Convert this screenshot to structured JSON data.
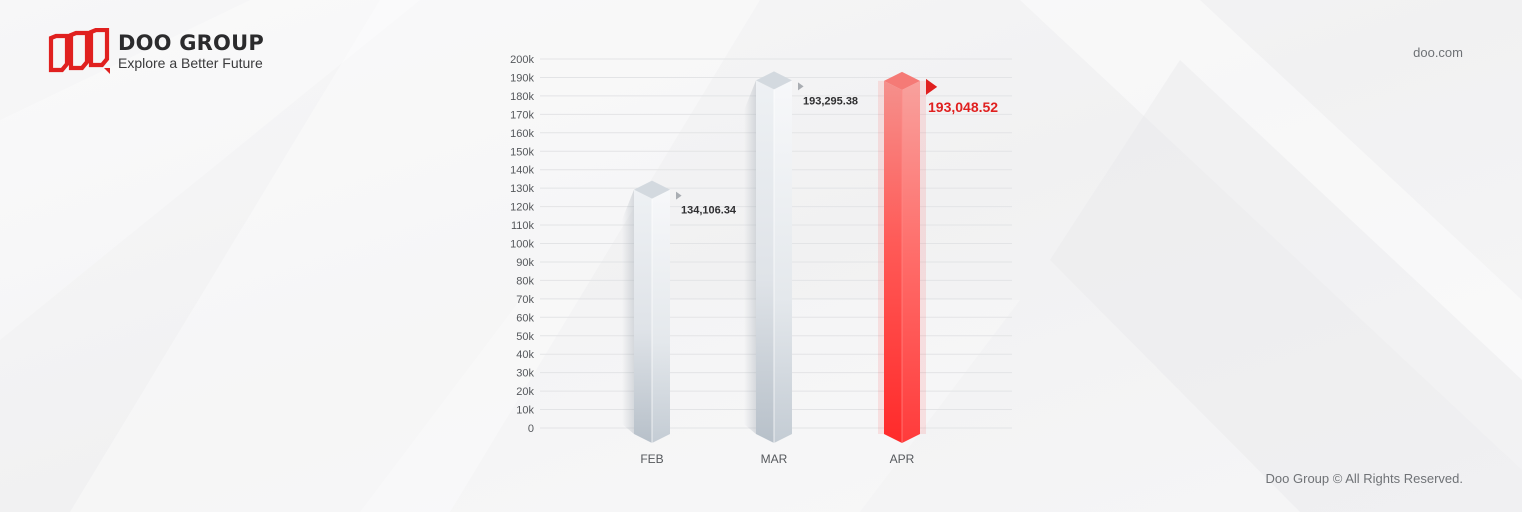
{
  "header": {
    "brand_name": "DOO GROUP",
    "tagline": "Explore a Better Future",
    "site_url": "doo.com"
  },
  "footer": {
    "copyright": "Doo Group © All Rights Reserved."
  },
  "icons": {
    "logo": "doo-logo-icon",
    "marker": "triangle-marker-icon"
  },
  "colors": {
    "brand_red": "#e0201f",
    "highlight_bar": "#ff3b3b",
    "neutral_bar": "#dfe3e8",
    "grid": "#e3e4e6",
    "text": "#2f2f31",
    "muted_text": "#6f7276"
  },
  "chart_data": {
    "type": "bar",
    "categories": [
      "FEB",
      "MAR",
      "APR"
    ],
    "values": [
      134106.34,
      193295.38,
      193048.52
    ],
    "value_labels": [
      "134,106.34",
      "193,295.38",
      "193,048.52"
    ],
    "highlight_index": 2,
    "ylim": [
      0,
      200000
    ],
    "ytick_step": 10000,
    "ytick_labels": [
      "0",
      "10k",
      "20k",
      "30k",
      "40k",
      "50k",
      "60k",
      "70k",
      "80k",
      "90k",
      "100k",
      "110k",
      "120k",
      "130k",
      "140k",
      "150k",
      "160k",
      "170k",
      "180k",
      "190k",
      "200k"
    ],
    "grid": true,
    "title": "",
    "xlabel": "",
    "ylabel": ""
  }
}
